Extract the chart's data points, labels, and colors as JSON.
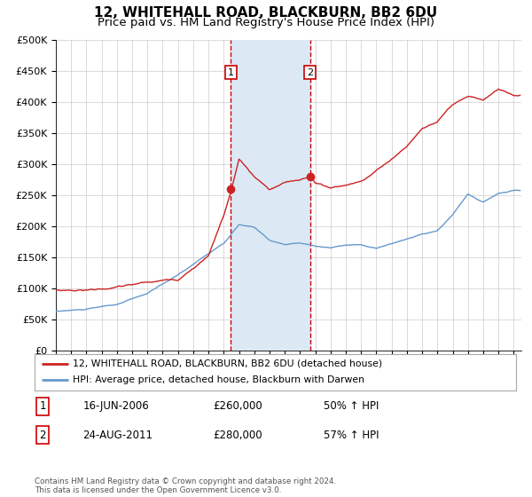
{
  "title": "12, WHITEHALL ROAD, BLACKBURN, BB2 6DU",
  "subtitle": "Price paid vs. HM Land Registry's House Price Index (HPI)",
  "ylim": [
    0,
    500000
  ],
  "yticks": [
    0,
    50000,
    100000,
    150000,
    200000,
    250000,
    300000,
    350000,
    400000,
    450000,
    500000
  ],
  "ytick_labels": [
    "£0",
    "£50K",
    "£100K",
    "£150K",
    "£200K",
    "£250K",
    "£300K",
    "£350K",
    "£400K",
    "£450K",
    "£500K"
  ],
  "xlim_start": 1995.0,
  "xlim_end": 2025.5,
  "hpi_color": "#6699cc",
  "price_color": "#cc2222",
  "shaded_region_color": "#dce9f5",
  "vline_color": "#cc0000",
  "transaction_1_x": 2006.46,
  "transaction_1_y": 260000,
  "transaction_2_x": 2011.65,
  "transaction_2_y": 280000,
  "legend_label_price": "12, WHITEHALL ROAD, BLACKBURN, BB2 6DU (detached house)",
  "legend_label_hpi": "HPI: Average price, detached house, Blackburn with Darwen",
  "annotation_1_date": "16-JUN-2006",
  "annotation_1_price": "£260,000",
  "annotation_1_hpi": "50% ↑ HPI",
  "annotation_2_date": "24-AUG-2011",
  "annotation_2_price": "£280,000",
  "annotation_2_hpi": "57% ↑ HPI",
  "footnote": "Contains HM Land Registry data © Crown copyright and database right 2024.\nThis data is licensed under the Open Government Licence v3.0.",
  "bg_color": "#ffffff",
  "grid_color": "#cccccc",
  "title_fontsize": 11,
  "subtitle_fontsize": 9.5
}
